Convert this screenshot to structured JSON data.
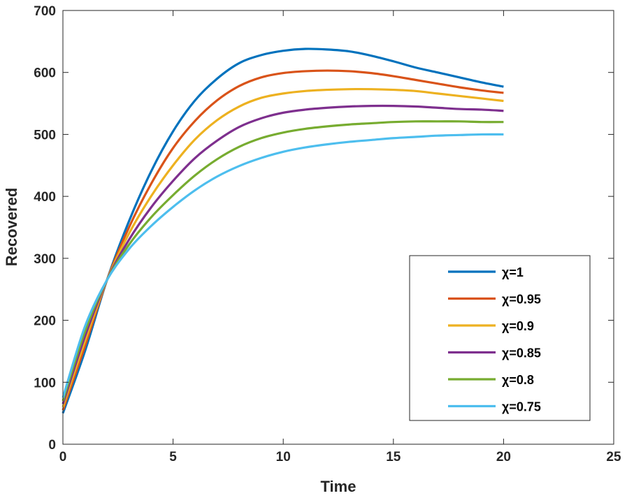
{
  "chart_data": {
    "type": "line",
    "title": "",
    "xlabel": "Time",
    "ylabel": "Recovered",
    "xlim": [
      0,
      25
    ],
    "ylim": [
      0,
      700
    ],
    "xticks": [
      0,
      5,
      10,
      15,
      20,
      25
    ],
    "yticks": [
      0,
      100,
      200,
      300,
      400,
      500,
      600,
      700
    ],
    "grid": false,
    "legend_position": "lower-right",
    "x": [
      0,
      1,
      2,
      3,
      4,
      5,
      6,
      7,
      8,
      9,
      10,
      11,
      12,
      13,
      14,
      15,
      16,
      17,
      18,
      19,
      20
    ],
    "series": [
      {
        "name": "χ=1",
        "color": "#0072BD",
        "values": [
          50,
          150,
          265,
          360,
          440,
          505,
          555,
          590,
          615,
          628,
          635,
          638,
          637,
          634,
          627,
          618,
          608,
          600,
          592,
          584,
          577
        ]
      },
      {
        "name": "χ=0.95",
        "color": "#D95319",
        "values": [
          55,
          158,
          265,
          350,
          420,
          478,
          522,
          555,
          578,
          592,
          599,
          602,
          603,
          602,
          599,
          594,
          588,
          582,
          576,
          571,
          567
        ]
      },
      {
        "name": "χ=0.9",
        "color": "#EDB120",
        "values": [
          60,
          166,
          265,
          340,
          400,
          450,
          492,
          523,
          545,
          559,
          566,
          570,
          572,
          573,
          573,
          572,
          570,
          566,
          562,
          558,
          554
        ]
      },
      {
        "name": "χ=0.85",
        "color": "#7E2F8E",
        "values": [
          65,
          174,
          265,
          330,
          382,
          425,
          462,
          490,
          512,
          526,
          535,
          540,
          543,
          545,
          546,
          546,
          545,
          543,
          541,
          540,
          538
        ]
      },
      {
        "name": "χ=0.8",
        "color": "#77AC30",
        "values": [
          70,
          182,
          265,
          322,
          366,
          402,
          434,
          460,
          480,
          494,
          503,
          509,
          513,
          516,
          518,
          520,
          521,
          521,
          521,
          520,
          520
        ]
      },
      {
        "name": "χ=0.75",
        "color": "#4DBEEE",
        "values": [
          75,
          190,
          265,
          315,
          352,
          383,
          410,
          432,
          449,
          462,
          472,
          479,
          484,
          488,
          491,
          494,
          496,
          498,
          499,
          500,
          500
        ]
      }
    ]
  }
}
